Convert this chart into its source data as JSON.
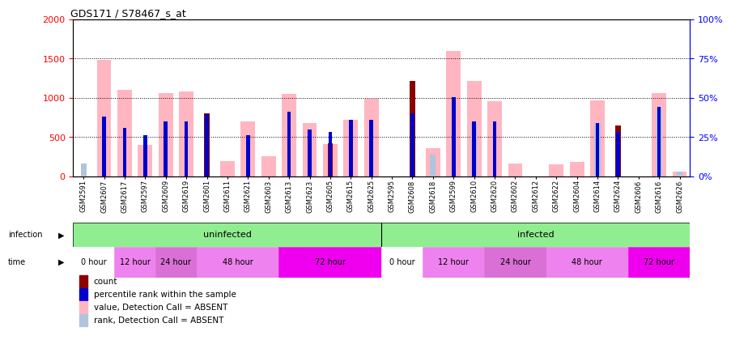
{
  "title": "GDS171 / S78467_s_at",
  "samples": [
    "GSM2591",
    "GSM2607",
    "GSM2617",
    "GSM2597",
    "GSM2609",
    "GSM2619",
    "GSM2601",
    "GSM2611",
    "GSM2621",
    "GSM2603",
    "GSM2613",
    "GSM2623",
    "GSM2605",
    "GSM2615",
    "GSM2625",
    "GSM2595",
    "GSM2608",
    "GSM2618",
    "GSM2599",
    "GSM2610",
    "GSM2620",
    "GSM2602",
    "GSM2612",
    "GSM2622",
    "GSM2604",
    "GSM2614",
    "GSM2624",
    "GSM2606",
    "GSM2616",
    "GSM2626"
  ],
  "pink_values": [
    0,
    1480,
    1100,
    400,
    1060,
    1080,
    0,
    200,
    700,
    260,
    1050,
    680,
    410,
    720,
    990,
    0,
    0,
    360,
    1600,
    1220,
    960,
    160,
    0,
    150,
    180,
    970,
    0,
    0,
    1060,
    60
  ],
  "red_values": [
    0,
    0,
    0,
    0,
    0,
    0,
    800,
    0,
    0,
    0,
    0,
    0,
    420,
    0,
    0,
    0,
    1220,
    0,
    0,
    0,
    0,
    0,
    0,
    0,
    0,
    0,
    650,
    0,
    0,
    0
  ],
  "blue_pct": [
    0,
    38,
    31,
    26,
    35,
    35,
    39.5,
    0,
    26,
    0,
    41,
    30,
    28.5,
    36,
    36,
    0,
    40,
    0,
    50.5,
    35,
    35,
    0,
    0,
    0,
    0,
    34,
    28.5,
    0,
    44.5,
    0
  ],
  "lb_pct": [
    8,
    0,
    0,
    0,
    0,
    0,
    0,
    0,
    0,
    0,
    0,
    0,
    0,
    0,
    0,
    0,
    0,
    14,
    0,
    34,
    0,
    0,
    0,
    0,
    0,
    34,
    0,
    0,
    44.5,
    3
  ],
  "ylim_left": [
    0,
    2000
  ],
  "ylim_right": [
    0,
    100
  ],
  "yticks_left": [
    0,
    500,
    1000,
    1500,
    2000
  ],
  "yticks_right": [
    0,
    25,
    50,
    75,
    100
  ],
  "pink_color": "#FFB6C1",
  "red_color": "#8B0000",
  "blue_color": "#0000CD",
  "light_blue_color": "#B0C4DE",
  "time_layout": [
    [
      0,
      1,
      "0 hour",
      "#FFFFFF"
    ],
    [
      2,
      3,
      "12 hour",
      "#EE82EE"
    ],
    [
      4,
      5,
      "24 hour",
      "#DA70D6"
    ],
    [
      6,
      9,
      "48 hour",
      "#EE82EE"
    ],
    [
      10,
      14,
      "72 hour",
      "#EE00EE"
    ],
    [
      15,
      16,
      "0 hour",
      "#FFFFFF"
    ],
    [
      17,
      19,
      "12 hour",
      "#EE82EE"
    ],
    [
      20,
      22,
      "24 hour",
      "#DA70D6"
    ],
    [
      23,
      26,
      "48 hour",
      "#EE82EE"
    ],
    [
      27,
      29,
      "72 hour",
      "#EE00EE"
    ]
  ]
}
